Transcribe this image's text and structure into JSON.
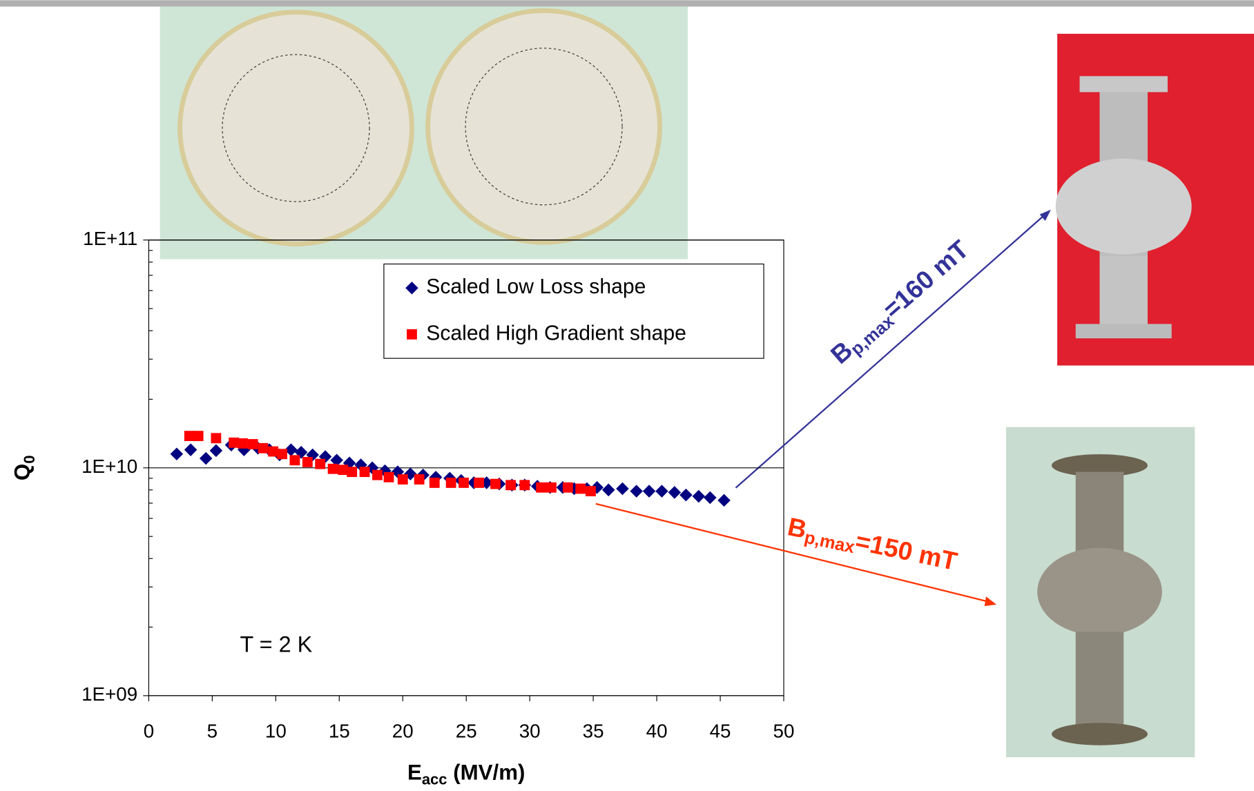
{
  "chart_data": {
    "type": "scatter",
    "log_y": true,
    "grid": true,
    "xlim": [
      0,
      50
    ],
    "xticks": [
      0,
      5,
      10,
      15,
      20,
      25,
      30,
      35,
      40,
      45,
      50
    ],
    "ylim": [
      1000000000,
      100000000000
    ],
    "yticks": [
      {
        "value": 1000000000,
        "label": "1E+09"
      },
      {
        "value": 10000000000,
        "label": "1E+10"
      },
      {
        "value": 100000000000,
        "label": "1E+11"
      }
    ],
    "xlabel": {
      "main": "E",
      "sub": "acc",
      "rest": " (MV/m)"
    },
    "ylabel": {
      "main": "Q",
      "sub": "0"
    },
    "legend": "top-right",
    "series": [
      {
        "name": "Scaled Low Loss shape",
        "color": "#000080",
        "marker": "diamond",
        "x": [
          2.2,
          3.3,
          4.5,
          5.3,
          6.5,
          7.5,
          8.6,
          9.5,
          10.3,
          11.2,
          12.0,
          12.9,
          13.9,
          14.8,
          15.8,
          16.7,
          17.6,
          18.6,
          19.6,
          20.6,
          21.6,
          22.6,
          23.7,
          24.6,
          25.6,
          26.6,
          27.6,
          28.6,
          29.6,
          30.6,
          31.6,
          32.6,
          33.5,
          34.5,
          35.3,
          36.2,
          37.3,
          38.4,
          39.4,
          40.4,
          41.4,
          42.3,
          43.3,
          44.2,
          45.3
        ],
        "values": [
          11500000000,
          12000000000,
          11000000000,
          11900000000,
          12600000000,
          12000000000,
          12200000000,
          12000000000,
          11400000000,
          12000000000,
          11700000000,
          11400000000,
          11200000000,
          10800000000,
          10500000000,
          10300000000,
          10000000000,
          9700000000,
          9600000000,
          9400000000,
          9300000000,
          9100000000,
          9000000000,
          8800000000,
          8600000000,
          8600000000,
          8500000000,
          8400000000,
          8400000000,
          8300000000,
          8200000000,
          8200000000,
          8100000000,
          8100000000,
          8200000000,
          8000000000,
          8100000000,
          7900000000,
          7900000000,
          7900000000,
          7800000000,
          7600000000,
          7500000000,
          7400000000,
          7200000000
        ]
      },
      {
        "name": "Scaled High Gradient shape",
        "color": "#ff0000",
        "marker": "square",
        "x": [
          3.2,
          3.9,
          5.3,
          6.7,
          7.4,
          8.2,
          9.0,
          9.8,
          10.5,
          11.5,
          12.5,
          13.5,
          14.5,
          15.3,
          16.0,
          17.0,
          18.0,
          18.9,
          20.0,
          21.3,
          22.5,
          23.8,
          24.8,
          26.0,
          27.3,
          28.5,
          29.6,
          30.9,
          31.7,
          33.0,
          34.0,
          34.8
        ],
        "values": [
          13800000000,
          13800000000,
          13500000000,
          12900000000,
          12800000000,
          12700000000,
          12200000000,
          11800000000,
          11500000000,
          10800000000,
          10600000000,
          10400000000,
          9900000000,
          9800000000,
          9600000000,
          9600000000,
          9300000000,
          9100000000,
          8900000000,
          8900000000,
          8600000000,
          8600000000,
          8600000000,
          8600000000,
          8500000000,
          8400000000,
          8400000000,
          8200000000,
          8200000000,
          8200000000,
          8100000000,
          7900000000
        ]
      }
    ],
    "annotations": [
      {
        "text": "T = 2 K"
      },
      {
        "main": "B",
        "sub": "p,max",
        "rest": "=160 mT",
        "color": "#333399"
      },
      {
        "main": "B",
        "sub": "p,max",
        "rest": "=150 mT",
        "color": "#ff3300"
      }
    ]
  }
}
